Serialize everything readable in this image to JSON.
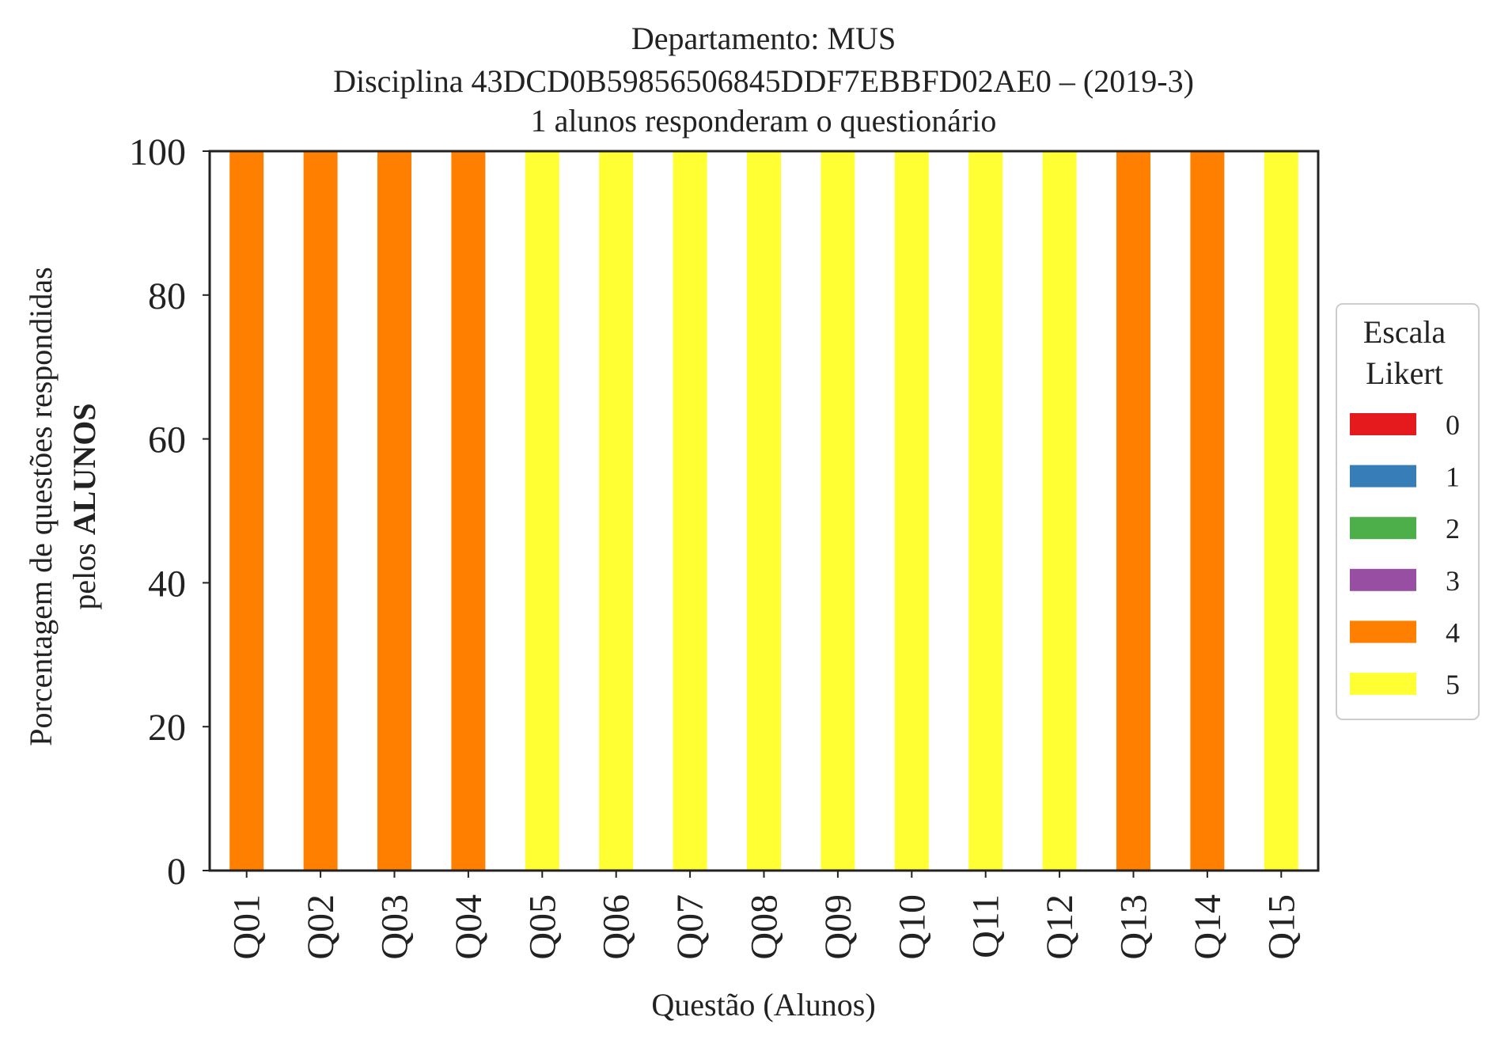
{
  "title": {
    "line1": "Departamento: MUS",
    "line2": "Disciplina 43DCD0B59856506845DDF7EBBFD02AE0 – (2019-3)",
    "line3": "1 alunos responderam o questionário"
  },
  "axes": {
    "ylabel_line1": "Porcentagem de questões respondidas",
    "ylabel_line2_prefix": "pelos ",
    "ylabel_line2_bold": "ALUNOS",
    "xlabel": "Questão (Alunos)"
  },
  "legend": {
    "title_line1": "Escala",
    "title_line2": "Likert",
    "placement": "center-right outside"
  },
  "chart_data": {
    "type": "bar",
    "stacked": true,
    "categories": [
      "Q01",
      "Q02",
      "Q03",
      "Q04",
      "Q05",
      "Q06",
      "Q07",
      "Q08",
      "Q09",
      "Q10",
      "Q11",
      "Q12",
      "Q13",
      "Q14",
      "Q15"
    ],
    "series": [
      {
        "name": "0",
        "color": "#e41a1c",
        "values": [
          0,
          0,
          0,
          0,
          0,
          0,
          0,
          0,
          0,
          0,
          0,
          0,
          0,
          0,
          0
        ]
      },
      {
        "name": "1",
        "color": "#377eb8",
        "values": [
          0,
          0,
          0,
          0,
          0,
          0,
          0,
          0,
          0,
          0,
          0,
          0,
          0,
          0,
          0
        ]
      },
      {
        "name": "2",
        "color": "#4daf4a",
        "values": [
          0,
          0,
          0,
          0,
          0,
          0,
          0,
          0,
          0,
          0,
          0,
          0,
          0,
          0,
          0
        ]
      },
      {
        "name": "3",
        "color": "#984ea3",
        "values": [
          0,
          0,
          0,
          0,
          0,
          0,
          0,
          0,
          0,
          0,
          0,
          0,
          0,
          0,
          0
        ]
      },
      {
        "name": "4",
        "color": "#ff7f00",
        "values": [
          100,
          100,
          100,
          100,
          0,
          0,
          0,
          0,
          0,
          0,
          0,
          0,
          100,
          100,
          0
        ]
      },
      {
        "name": "5",
        "color": "#ffff33",
        "values": [
          0,
          0,
          0,
          0,
          100,
          100,
          100,
          100,
          100,
          100,
          100,
          100,
          0,
          0,
          100
        ]
      }
    ],
    "ylim": [
      0,
      100
    ],
    "yticks": [
      "0",
      "20",
      "40",
      "60",
      "80",
      "100"
    ],
    "grid": false
  }
}
